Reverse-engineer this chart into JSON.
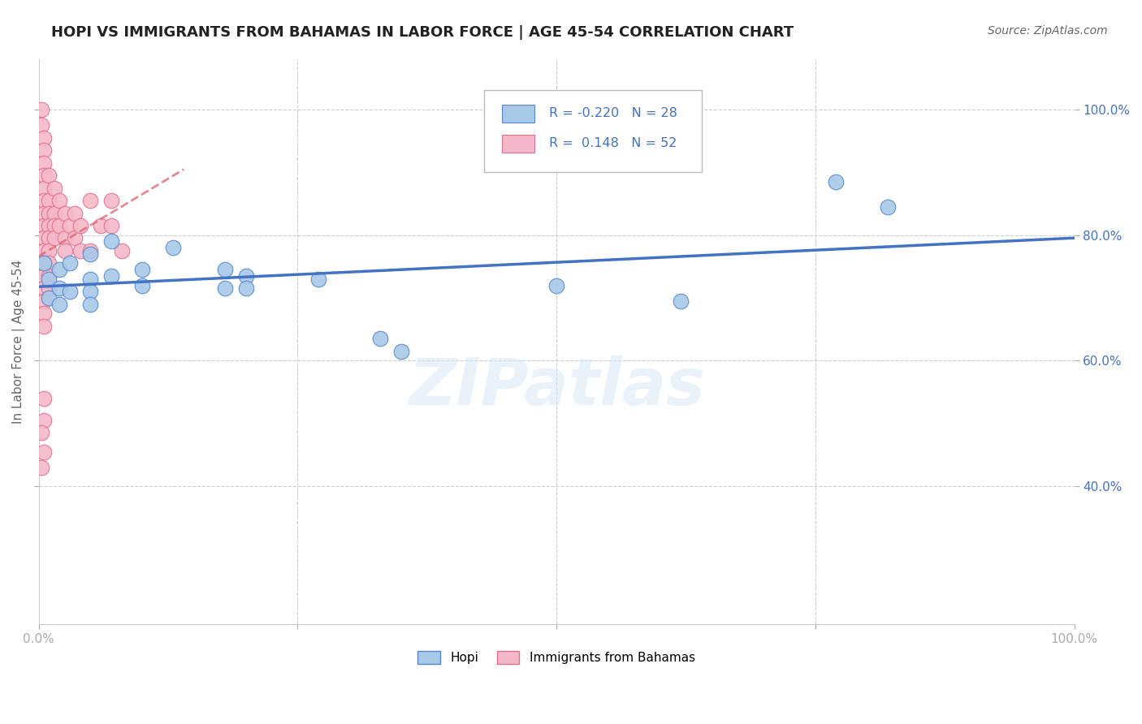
{
  "title": "HOPI VS IMMIGRANTS FROM BAHAMAS IN LABOR FORCE | AGE 45-54 CORRELATION CHART",
  "source": "Source: ZipAtlas.com",
  "ylabel": "In Labor Force | Age 45-54",
  "hopi_R": "-0.220",
  "hopi_N": "28",
  "bahamas_R": "0.148",
  "bahamas_N": "52",
  "xlim": [
    0.0,
    1.0
  ],
  "ylim": [
    0.18,
    1.08
  ],
  "hopi_color": "#a8c8e8",
  "bahamas_color": "#f5b8c8",
  "hopi_edge_color": "#5588cc",
  "bahamas_edge_color": "#e07090",
  "hopi_line_color": "#4472c4",
  "bahamas_line_color": "#e06070",
  "hopi_scatter": [
    [
      0.005,
      0.755
    ],
    [
      0.01,
      0.73
    ],
    [
      0.01,
      0.7
    ],
    [
      0.02,
      0.745
    ],
    [
      0.02,
      0.715
    ],
    [
      0.02,
      0.69
    ],
    [
      0.03,
      0.755
    ],
    [
      0.03,
      0.71
    ],
    [
      0.05,
      0.77
    ],
    [
      0.05,
      0.73
    ],
    [
      0.05,
      0.71
    ],
    [
      0.05,
      0.69
    ],
    [
      0.07,
      0.79
    ],
    [
      0.07,
      0.735
    ],
    [
      0.1,
      0.745
    ],
    [
      0.1,
      0.72
    ],
    [
      0.13,
      0.78
    ],
    [
      0.18,
      0.745
    ],
    [
      0.18,
      0.715
    ],
    [
      0.2,
      0.735
    ],
    [
      0.2,
      0.715
    ],
    [
      0.27,
      0.73
    ],
    [
      0.33,
      0.635
    ],
    [
      0.35,
      0.615
    ],
    [
      0.5,
      0.72
    ],
    [
      0.62,
      0.695
    ],
    [
      0.77,
      0.885
    ],
    [
      0.82,
      0.845
    ]
  ],
  "bahamas_scatter": [
    [
      0.003,
      1.0
    ],
    [
      0.003,
      0.975
    ],
    [
      0.005,
      0.955
    ],
    [
      0.005,
      0.935
    ],
    [
      0.005,
      0.915
    ],
    [
      0.005,
      0.895
    ],
    [
      0.005,
      0.875
    ],
    [
      0.005,
      0.855
    ],
    [
      0.005,
      0.835
    ],
    [
      0.005,
      0.815
    ],
    [
      0.005,
      0.795
    ],
    [
      0.005,
      0.775
    ],
    [
      0.005,
      0.755
    ],
    [
      0.005,
      0.735
    ],
    [
      0.005,
      0.715
    ],
    [
      0.005,
      0.695
    ],
    [
      0.005,
      0.675
    ],
    [
      0.005,
      0.655
    ],
    [
      0.01,
      0.895
    ],
    [
      0.01,
      0.855
    ],
    [
      0.01,
      0.835
    ],
    [
      0.01,
      0.815
    ],
    [
      0.01,
      0.795
    ],
    [
      0.01,
      0.775
    ],
    [
      0.01,
      0.755
    ],
    [
      0.01,
      0.735
    ],
    [
      0.01,
      0.715
    ],
    [
      0.015,
      0.875
    ],
    [
      0.015,
      0.835
    ],
    [
      0.015,
      0.815
    ],
    [
      0.015,
      0.795
    ],
    [
      0.02,
      0.855
    ],
    [
      0.02,
      0.815
    ],
    [
      0.025,
      0.835
    ],
    [
      0.025,
      0.795
    ],
    [
      0.025,
      0.775
    ],
    [
      0.03,
      0.815
    ],
    [
      0.035,
      0.835
    ],
    [
      0.035,
      0.795
    ],
    [
      0.04,
      0.815
    ],
    [
      0.04,
      0.775
    ],
    [
      0.05,
      0.855
    ],
    [
      0.05,
      0.775
    ],
    [
      0.06,
      0.815
    ],
    [
      0.07,
      0.855
    ],
    [
      0.07,
      0.815
    ],
    [
      0.08,
      0.775
    ],
    [
      0.005,
      0.54
    ],
    [
      0.005,
      0.505
    ],
    [
      0.003,
      0.485
    ],
    [
      0.005,
      0.455
    ],
    [
      0.003,
      0.43
    ]
  ],
  "watermark": "ZIPatlas",
  "background_color": "#ffffff",
  "grid_color": "#c8c8c8"
}
